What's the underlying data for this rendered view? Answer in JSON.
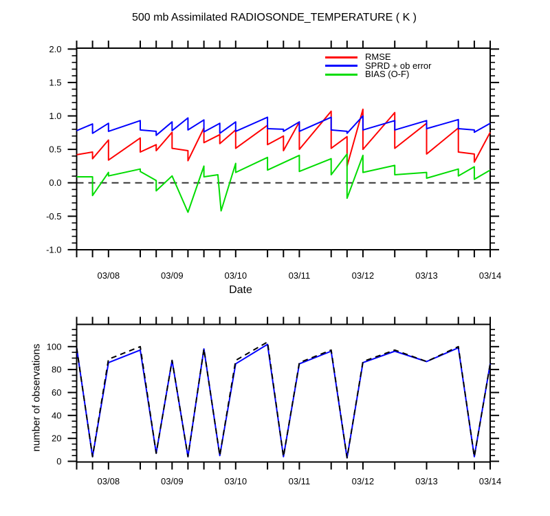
{
  "chart_data": [
    {
      "type": "line",
      "title": "500 mb Assimilated RADIOSONDE_TEMPERATURE ( K )",
      "xlabel": "Date",
      "ylabel": "",
      "ylim": [
        -1.0,
        2.0
      ],
      "xlim": [
        -0.5,
        6.0
      ],
      "x_unit": "days since 03/08 00Z",
      "x_day_ticklabels": [
        "03/08",
        "03/09",
        "03/10",
        "03/11",
        "03/12",
        "03/13",
        "03/14"
      ],
      "x_obs_tick_times": [
        -0.5,
        -0.25,
        0,
        0.5,
        0.75,
        1,
        1.25,
        1.5,
        1.75,
        2,
        2.5,
        2.75,
        3,
        3.5,
        3.75,
        4,
        4.5,
        5,
        5.5,
        5.75,
        6
      ],
      "y_major_ticks": [
        2.0,
        1.5,
        1.0,
        0.5,
        0.0,
        -0.5,
        -1.0
      ],
      "y_tick_labels": [
        "2.0",
        "1.5",
        "1.0",
        "0.5",
        "0.0",
        "-0.5",
        "-1.0"
      ],
      "y_minor_step": 0.1,
      "y_major_step": 0.5,
      "y_minor_range": [
        -1.0,
        2.0
      ],
      "zero_line": true,
      "zero_line_color": "#333333",
      "legend_position": "upper-center-right",
      "grid": false,
      "series": [
        {
          "name": "RMSE",
          "color": "#ff0000",
          "points": [
            [
              -0.5,
              0.42
            ],
            [
              -0.25,
              0.46
            ],
            [
              -0.25,
              0.36
            ],
            [
              0,
              0.64
            ],
            [
              0,
              0.34
            ],
            [
              0.5,
              0.67
            ],
            [
              0.5,
              0.46
            ],
            [
              0.75,
              0.57
            ],
            [
              0.75,
              0.48
            ],
            [
              1,
              0.755
            ],
            [
              1,
              0.515
            ],
            [
              1.25,
              0.48
            ],
            [
              1.25,
              0.33
            ],
            [
              1.5,
              0.82
            ],
            [
              1.5,
              0.6
            ],
            [
              1.75,
              0.72
            ],
            [
              1.75,
              0.585
            ],
            [
              2,
              0.79
            ],
            [
              2,
              0.515
            ],
            [
              2.5,
              0.86
            ],
            [
              2.5,
              0.57
            ],
            [
              2.75,
              0.7
            ],
            [
              2.75,
              0.48
            ],
            [
              3,
              0.91
            ],
            [
              3,
              0.5
            ],
            [
              3.5,
              1.07
            ],
            [
              3.5,
              0.515
            ],
            [
              3.75,
              0.69
            ],
            [
              3.75,
              0.25
            ],
            [
              4,
              1.1
            ],
            [
              4,
              0.5
            ],
            [
              4.5,
              1.05
            ],
            [
              4.5,
              0.515
            ],
            [
              5,
              0.89
            ],
            [
              5,
              0.43
            ],
            [
              5.5,
              0.82
            ],
            [
              5.5,
              0.46
            ],
            [
              5.75,
              0.43
            ],
            [
              5.75,
              0.31
            ],
            [
              6,
              0.755
            ]
          ]
        },
        {
          "name": "SPRD + ob error",
          "color": "#0000ff",
          "points": [
            [
              -0.5,
              0.78
            ],
            [
              -0.25,
              0.88
            ],
            [
              -0.25,
              0.74
            ],
            [
              0,
              0.89
            ],
            [
              0,
              0.77
            ],
            [
              0.5,
              0.93
            ],
            [
              0.5,
              0.79
            ],
            [
              0.75,
              0.77
            ],
            [
              0.75,
              0.71
            ],
            [
              1,
              0.91
            ],
            [
              1,
              0.78
            ],
            [
              1.25,
              0.97
            ],
            [
              1.25,
              0.79
            ],
            [
              1.5,
              0.94
            ],
            [
              1.5,
              0.76
            ],
            [
              1.75,
              0.89
            ],
            [
              1.75,
              0.74
            ],
            [
              2,
              0.91
            ],
            [
              2,
              0.77
            ],
            [
              2.5,
              0.98
            ],
            [
              2.5,
              0.81
            ],
            [
              2.75,
              0.8
            ],
            [
              2.75,
              0.77
            ],
            [
              3,
              0.91
            ],
            [
              3,
              0.77
            ],
            [
              3.5,
              0.98
            ],
            [
              3.5,
              0.79
            ],
            [
              3.75,
              0.77
            ],
            [
              3.75,
              0.74
            ],
            [
              4,
              1.0
            ],
            [
              4,
              0.79
            ],
            [
              4.5,
              0.93
            ],
            [
              4.5,
              0.79
            ],
            [
              5,
              0.93
            ],
            [
              5,
              0.81
            ],
            [
              5.5,
              0.945
            ],
            [
              5.5,
              0.81
            ],
            [
              5.75,
              0.79
            ],
            [
              5.75,
              0.755
            ],
            [
              6,
              0.89
            ]
          ]
        },
        {
          "name": "BIAS (O-F)",
          "color": "#00dc00",
          "points": [
            [
              -0.5,
              0.09
            ],
            [
              -0.25,
              0.09
            ],
            [
              -0.25,
              -0.19
            ],
            [
              0,
              0.155
            ],
            [
              0,
              0.103
            ],
            [
              0.5,
              0.206
            ],
            [
              0.5,
              0.17
            ],
            [
              0.75,
              0.034
            ],
            [
              0.75,
              -0.12
            ],
            [
              1,
              0.103
            ],
            [
              1.25,
              -0.44
            ],
            [
              1.5,
              0.25
            ],
            [
              1.5,
              0.09
            ],
            [
              1.72,
              0.12
            ],
            [
              1.77,
              -0.42
            ],
            [
              2,
              0.29
            ],
            [
              2,
              0.155
            ],
            [
              2.5,
              0.38
            ],
            [
              2.5,
              0.19
            ],
            [
              3,
              0.41
            ],
            [
              3,
              0.17
            ],
            [
              3.5,
              0.36
            ],
            [
              3.5,
              0.12
            ],
            [
              3.75,
              0.43
            ],
            [
              3.75,
              -0.23
            ],
            [
              4,
              0.41
            ],
            [
              4,
              0.155
            ],
            [
              4.5,
              0.26
            ],
            [
              4.5,
              0.12
            ],
            [
              5,
              0.155
            ],
            [
              5,
              0.069
            ],
            [
              5.5,
              0.206
            ],
            [
              5.5,
              0.103
            ],
            [
              5.75,
              0.24
            ],
            [
              5.75,
              0.052
            ],
            [
              6,
              0.19
            ]
          ]
        }
      ]
    },
    {
      "type": "line",
      "title": "",
      "xlabel": "",
      "ylabel": "number of observations",
      "ylim": [
        0,
        100
      ],
      "xlim": [
        -0.5,
        6.0
      ],
      "x_unit": "days since 03/08 00Z",
      "x_day_ticklabels": [
        "03/08",
        "03/09",
        "03/10",
        "03/11",
        "03/12",
        "03/13",
        "03/14"
      ],
      "x_obs_tick_times": [
        -0.5,
        -0.25,
        0,
        0.5,
        0.75,
        1,
        1.25,
        1.5,
        1.75,
        2,
        2.5,
        2.75,
        3,
        3.5,
        3.75,
        4,
        4.5,
        5,
        5.5,
        5.75,
        6
      ],
      "y_major_ticks": [
        100,
        80,
        60,
        40,
        20,
        0
      ],
      "y_tick_labels": [
        "100",
        "80",
        "60",
        "40",
        "20",
        "0"
      ],
      "y_minor_step": 5,
      "y_major_step": 20,
      "y_minor_range": [
        0,
        115
      ],
      "zero_line": false,
      "grid": false,
      "series": [
        {
          "name": "solid",
          "color": "#0000ff",
          "points": [
            [
              -0.5,
              99
            ],
            [
              -0.25,
              4
            ],
            [
              0,
              86
            ],
            [
              0.5,
              97
            ],
            [
              0.75,
              7
            ],
            [
              1,
              88
            ],
            [
              1.25,
              4
            ],
            [
              1.5,
              98
            ],
            [
              1.75,
              5
            ],
            [
              2,
              85
            ],
            [
              2.5,
              102
            ],
            [
              2.75,
              4
            ],
            [
              3,
              85
            ],
            [
              3.5,
              96
            ],
            [
              3.75,
              3
            ],
            [
              4,
              86
            ],
            [
              4.5,
              96
            ],
            [
              5,
              87
            ],
            [
              5.5,
              99
            ],
            [
              5.75,
              4
            ],
            [
              6,
              85
            ]
          ]
        },
        {
          "name": "dashed",
          "color": "#000000",
          "dash": true,
          "points": [
            [
              -0.5,
              99
            ],
            [
              -0.25,
              4
            ],
            [
              0,
              89
            ],
            [
              0.5,
              100
            ],
            [
              0.75,
              7
            ],
            [
              1,
              88
            ],
            [
              1.25,
              4
            ],
            [
              1.5,
              98
            ],
            [
              1.75,
              5
            ],
            [
              2,
              88
            ],
            [
              2.5,
              104
            ],
            [
              2.75,
              4
            ],
            [
              3,
              86
            ],
            [
              3.5,
              97
            ],
            [
              3.75,
              3
            ],
            [
              4,
              87
            ],
            [
              4.5,
              97
            ],
            [
              5,
              87
            ],
            [
              5.5,
              100
            ],
            [
              5.75,
              4
            ],
            [
              6,
              85
            ]
          ]
        }
      ]
    }
  ]
}
